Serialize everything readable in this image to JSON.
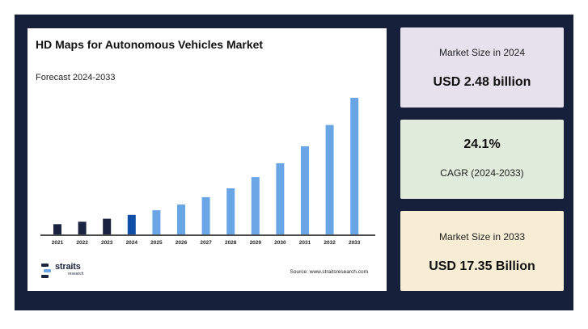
{
  "chart": {
    "title": "HD Maps for Autonomous Vehicles Market",
    "subtitle": "Forecast 2024-2033",
    "source": "Source: www.straitsresearch.com"
  },
  "brand": {
    "name": "straits",
    "tagline": "research"
  },
  "cards": [
    {
      "label": "Market Size in 2024",
      "value": "USD 2.48 billion"
    },
    {
      "value": "24.1%",
      "label": "CAGR (2024-2033)"
    },
    {
      "label": "Market Size in 2033",
      "value": "USD 17.35 Billion"
    }
  ],
  "colors": {
    "frame": "#16203a",
    "bar_historic": "#1a2440",
    "bar_base_year": "#0f4fa8",
    "bar_forecast": "#6aa6e6",
    "card_1": "#e6e1ec",
    "card_2": "#e1ebdc",
    "card_3": "#f6edd4"
  },
  "chart_data": {
    "type": "bar",
    "title": "HD Maps for Autonomous Vehicles Market",
    "subtitle": "Forecast 2024-2033",
    "categories": [
      "2021",
      "2022",
      "2023",
      "2024",
      "2025",
      "2026",
      "2027",
      "2028",
      "2029",
      "2030",
      "2031",
      "2032",
      "2033"
    ],
    "values": [
      1.3,
      1.61,
      1.99,
      2.48,
      3.07,
      3.81,
      4.73,
      5.86,
      7.28,
      9.03,
      11.2,
      13.9,
      17.35
    ],
    "bar_kinds": [
      "historic",
      "historic",
      "historic",
      "base",
      "forecast",
      "forecast",
      "forecast",
      "forecast",
      "forecast",
      "forecast",
      "forecast",
      "forecast",
      "forecast"
    ],
    "xlabel": "",
    "ylabel": "",
    "ylim": [
      0,
      17.35
    ],
    "grid": false,
    "legend": "none"
  }
}
